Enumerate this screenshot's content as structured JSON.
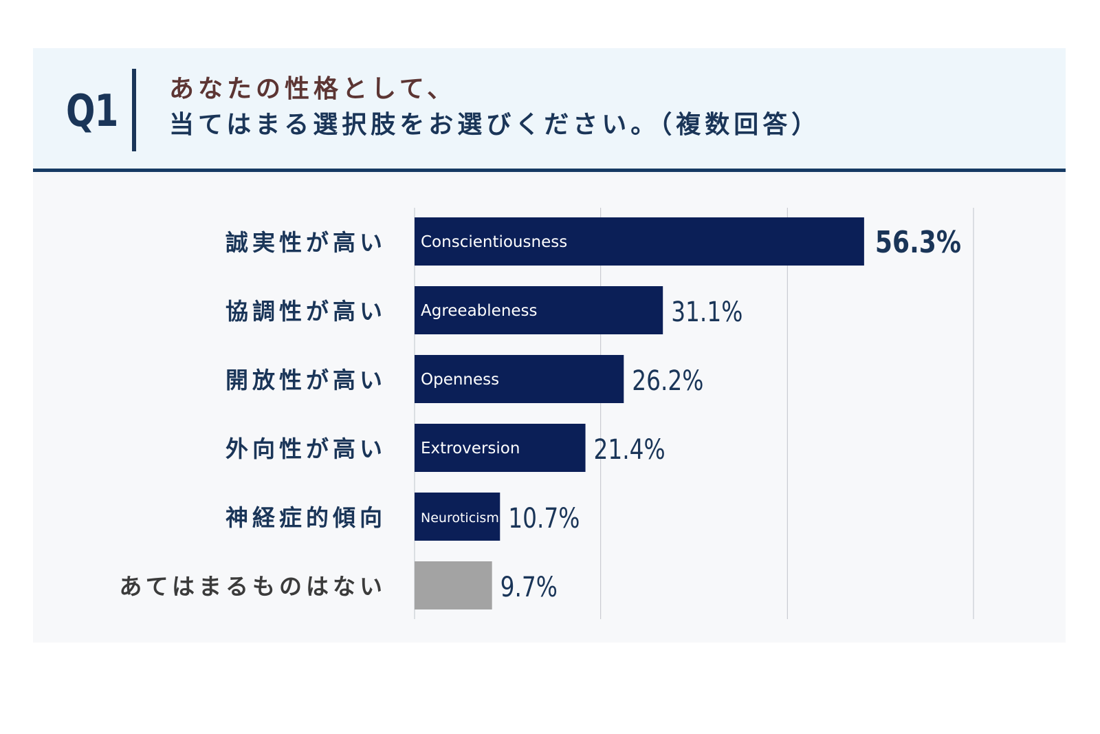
{
  "header": {
    "q_number": "Q1",
    "question_line1": "あなたの性格として、",
    "question_line2": "当てはまる選択肢をお選びください。（複数回答）"
  },
  "colors": {
    "header_bg": "#eef6fb",
    "header_rule": "#163a63",
    "title_brown": "#5c3533",
    "navy": "#0b1f57",
    "gray_bar": "#a3a3a3",
    "label_text": "#1a3558",
    "last_label_text": "#3b3b3b"
  },
  "chart_data": {
    "type": "bar",
    "orientation": "horizontal",
    "xlim": [
      0,
      70
    ],
    "gridlines": [
      0,
      23.3,
      46.7,
      70
    ],
    "grid": true,
    "categories": [
      "誠実性が高い",
      "協調性が高い",
      "開放性が高い",
      "外向性が高い",
      "神経症的傾向",
      "あてはまるものはない"
    ],
    "bar_labels": [
      "Conscientiousness",
      "Agreeableness",
      "Openness",
      "Extroversion",
      "Neuroticism",
      ""
    ],
    "values": [
      56.3,
      31.1,
      26.2,
      21.4,
      10.7,
      9.7
    ],
    "value_labels": [
      "56.3%",
      "31.1%",
      "26.2%",
      "21.4%",
      "10.7%",
      "9.7%"
    ]
  }
}
